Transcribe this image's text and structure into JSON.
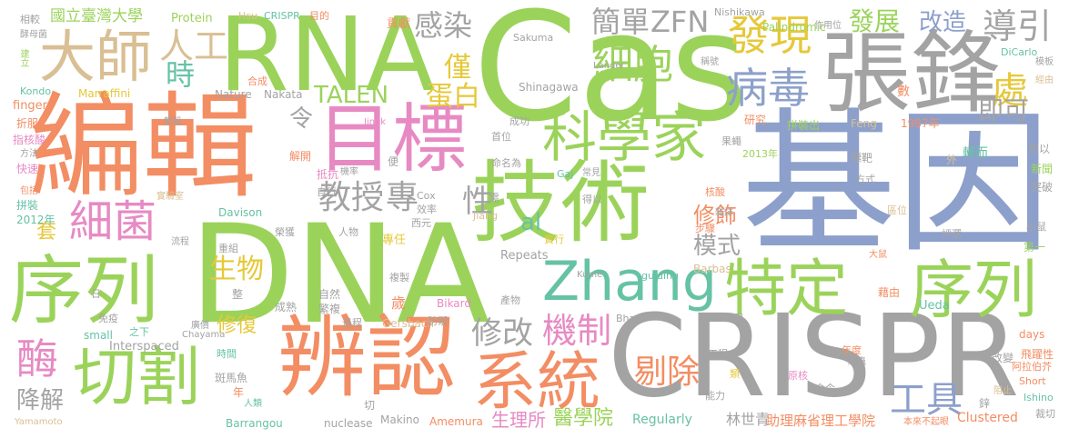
{
  "palette": {
    "green": "#9bd35a",
    "orange": "#f38d63",
    "blue": "#8da0cb",
    "gray": "#a3a3a3",
    "pink": "#e78ac3",
    "tan": "#d9bf93",
    "teal": "#66c2a5",
    "yellow": "#e6c838"
  },
  "words": [
    {
      "text": "Cas",
      "color": "green"
    },
    {
      "text": "基因",
      "color": "blue"
    },
    {
      "text": "DNA",
      "color": "green"
    },
    {
      "text": "編輯",
      "color": "orange"
    },
    {
      "text": "CRISPR",
      "color": "gray"
    },
    {
      "text": "RNA",
      "color": "green"
    },
    {
      "text": "張鋒",
      "color": "gray"
    },
    {
      "text": "技術",
      "color": "green"
    },
    {
      "text": "辨認",
      "color": "orange"
    },
    {
      "text": "目標",
      "color": "pink"
    },
    {
      "text": "序列",
      "color": "green"
    },
    {
      "text": "序列",
      "color": "green"
    },
    {
      "text": "特定",
      "color": "green"
    },
    {
      "text": "Zhang",
      "color": "teal"
    },
    {
      "text": "切割",
      "color": "green"
    },
    {
      "text": "系統",
      "color": "orange"
    },
    {
      "text": "科學家",
      "color": "green"
    },
    {
      "text": "大師",
      "color": "tan"
    },
    {
      "text": "細菌",
      "color": "pink"
    },
    {
      "text": "細胞",
      "color": "green"
    },
    {
      "text": "病毒",
      "color": "blue"
    },
    {
      "text": "發現",
      "color": "yellow"
    },
    {
      "text": "酶",
      "color": "pink"
    },
    {
      "text": "教授",
      "color": "gray"
    },
    {
      "text": "專",
      "color": "gray"
    },
    {
      "text": "機制",
      "color": "pink"
    },
    {
      "text": "修改",
      "color": "gray"
    },
    {
      "text": "剔除",
      "color": "orange"
    },
    {
      "text": "工具",
      "color": "blue"
    },
    {
      "text": "發展",
      "color": "green"
    },
    {
      "text": "改造",
      "color": "blue"
    },
    {
      "text": "導引",
      "color": "gray"
    },
    {
      "text": "簡單",
      "color": "gray"
    },
    {
      "text": "ZFN",
      "color": "gray"
    },
    {
      "text": "感染",
      "color": "gray"
    },
    {
      "text": "TALEN",
      "color": "green"
    },
    {
      "text": "蛋白",
      "color": "yellow"
    },
    {
      "text": "人工",
      "color": "tan"
    },
    {
      "text": "時",
      "color": "teal"
    },
    {
      "text": "處",
      "color": "yellow"
    },
    {
      "text": "即可",
      "color": "gray"
    },
    {
      "text": "修飾",
      "color": "orange"
    },
    {
      "text": "模式",
      "color": "gray"
    },
    {
      "text": "生物",
      "color": "yellow"
    },
    {
      "text": "修復",
      "color": "yellow"
    },
    {
      "text": "降解",
      "color": "gray"
    },
    {
      "text": "性",
      "color": "gray"
    },
    {
      "text": "僅",
      "color": "yellow"
    },
    {
      "text": "al",
      "color": "teal"
    },
    {
      "text": "令",
      "color": "gray"
    },
    {
      "text": "套",
      "color": "yellow"
    },
    {
      "text": "醫學院",
      "color": "green"
    },
    {
      "text": "生理所",
      "color": "pink"
    },
    {
      "text": "林世青",
      "color": "gray"
    },
    {
      "text": "助理麻省理工學院",
      "color": "orange"
    },
    {
      "text": "Clustered",
      "color": "orange"
    },
    {
      "text": "Regularly",
      "color": "teal"
    },
    {
      "text": "國立臺灣大學",
      "color": "green"
    },
    {
      "text": "Protein",
      "color": "green"
    },
    {
      "text": "Hsu",
      "color": "tan"
    },
    {
      "text": "CRISPR",
      "color": "teal"
    },
    {
      "text": "目的",
      "color": "orange"
    },
    {
      "text": "貢獻",
      "color": "orange"
    },
    {
      "text": "Nishikawa",
      "color": "gray"
    },
    {
      "text": "Palindromic",
      "color": "green"
    },
    {
      "text": "作用位",
      "color": "gray"
    },
    {
      "text": "相較",
      "color": "gray"
    },
    {
      "text": "酵母菌",
      "color": "gray"
    },
    {
      "text": "建立",
      "color": "green"
    },
    {
      "text": "Kondo",
      "color": "teal"
    },
    {
      "text": "finger",
      "color": "orange"
    },
    {
      "text": "折服",
      "color": "orange"
    },
    {
      "text": "指核酸",
      "color": "pink"
    },
    {
      "text": "方法",
      "color": "gray"
    },
    {
      "text": "快速",
      "color": "pink"
    },
    {
      "text": "包括",
      "color": "orange"
    },
    {
      "text": "拼裝",
      "color": "teal"
    },
    {
      "text": "2012年",
      "color": "teal"
    },
    {
      "text": "Marraffini",
      "color": "yellow"
    },
    {
      "text": "Nature",
      "color": "gray"
    },
    {
      "text": "Nakata",
      "color": "gray"
    },
    {
      "text": "Jinek",
      "color": "pink"
    },
    {
      "text": "Sakuma",
      "color": "gray"
    },
    {
      "text": "Shinagawa",
      "color": "gray"
    },
    {
      "text": "Lander",
      "color": "gray"
    },
    {
      "text": "稱號",
      "color": "gray"
    },
    {
      "text": "DiCarlo",
      "color": "teal"
    },
    {
      "text": "模板",
      "color": "gray"
    },
    {
      "text": "經由",
      "color": "tan"
    },
    {
      "text": "Feng",
      "color": "tan"
    },
    {
      "text": "1987年",
      "color": "orange"
    },
    {
      "text": "研究",
      "color": "orange"
    },
    {
      "text": "拼裝出",
      "color": "green"
    },
    {
      "text": "成功",
      "color": "gray"
    },
    {
      "text": "首位",
      "color": "gray"
    },
    {
      "text": "命名為",
      "color": "gray"
    },
    {
      "text": "Gaj",
      "color": "teal"
    },
    {
      "text": "常見",
      "color": "gray"
    },
    {
      "text": "核酸",
      "color": "orange"
    },
    {
      "text": "2013年",
      "color": "green"
    },
    {
      "text": "轉而",
      "color": "teal"
    },
    {
      "text": "標靶",
      "color": "gray"
    },
    {
      "text": "方式",
      "color": "gray"
    },
    {
      "text": "用以",
      "color": "gray"
    },
    {
      "text": "新聞",
      "color": "green"
    },
    {
      "text": "突破",
      "color": "gray"
    },
    {
      "text": "Cox",
      "color": "gray"
    },
    {
      "text": "Davison",
      "color": "teal"
    },
    {
      "text": "Jiang",
      "color": "tan"
    },
    {
      "text": "西元",
      "color": "gray"
    },
    {
      "text": "人物",
      "color": "gray"
    },
    {
      "text": "雜誌",
      "color": "gray"
    },
    {
      "text": "步驟",
      "color": "orange"
    },
    {
      "text": "區位",
      "color": "tan"
    },
    {
      "text": "評選",
      "color": "gray"
    },
    {
      "text": "第一",
      "color": "green"
    },
    {
      "text": "小鼠",
      "color": "gray"
    },
    {
      "text": "重組",
      "color": "gray"
    },
    {
      "text": "榮獲",
      "color": "gray"
    },
    {
      "text": "專任",
      "color": "yellow"
    },
    {
      "text": "實行",
      "color": "yellow"
    },
    {
      "text": "Repeats",
      "color": "gray"
    },
    {
      "text": "Barbas",
      "color": "tan"
    },
    {
      "text": "Kume",
      "color": "gray"
    },
    {
      "text": "guiding",
      "color": "teal"
    },
    {
      "text": "大鼠",
      "color": "orange"
    },
    {
      "text": "藉由",
      "color": "orange"
    },
    {
      "text": "Ueda",
      "color": "teal"
    },
    {
      "text": "days",
      "color": "orange"
    },
    {
      "text": "自然",
      "color": "gray"
    },
    {
      "text": "繁複",
      "color": "gray"
    },
    {
      "text": "成熟",
      "color": "gray"
    },
    {
      "text": "複製",
      "color": "gray"
    },
    {
      "text": "歲",
      "color": "orange"
    },
    {
      "text": "Bikard",
      "color": "pink"
    },
    {
      "text": "產物",
      "color": "gray"
    },
    {
      "text": "過程",
      "color": "gray"
    },
    {
      "text": "Gersbach",
      "color": "tan"
    },
    {
      "text": "防禦",
      "color": "gray"
    },
    {
      "text": "Bhaya",
      "color": "gray"
    },
    {
      "text": "免疫",
      "color": "gray"
    },
    {
      "text": "small",
      "color": "teal"
    },
    {
      "text": "Interspaced",
      "color": "gray"
    },
    {
      "text": "Chayama",
      "color": "gray"
    },
    {
      "text": "廣價",
      "color": "gray"
    },
    {
      "text": "時間",
      "color": "teal"
    },
    {
      "text": "斑馬魚",
      "color": "gray"
    },
    {
      "text": "人類",
      "color": "teal"
    },
    {
      "text": "Yamamoto",
      "color": "tan"
    },
    {
      "text": "Barrangou",
      "color": "teal"
    },
    {
      "text": "nuclease",
      "color": "gray"
    },
    {
      "text": "Makino",
      "color": "gray"
    },
    {
      "text": "Amemura",
      "color": "orange"
    },
    {
      "text": "工程",
      "color": "gray"
    },
    {
      "text": "年度",
      "color": "orange"
    },
    {
      "text": "命令",
      "color": "gray"
    },
    {
      "text": "能力",
      "color": "gray"
    },
    {
      "text": "改變",
      "color": "gray"
    },
    {
      "text": "飛躍性",
      "color": "orange"
    },
    {
      "text": "阿拉伯芥",
      "color": "orange"
    },
    {
      "text": "Short",
      "color": "orange"
    },
    {
      "text": "阻止",
      "color": "tan"
    },
    {
      "text": "Ishino",
      "color": "teal"
    },
    {
      "text": "裁切",
      "color": "gray"
    },
    {
      "text": "本來不起眼",
      "color": "orange"
    },
    {
      "text": "線蟲",
      "color": "gray"
    },
    {
      "text": "原核",
      "color": "pink"
    },
    {
      "text": "解開",
      "color": "orange"
    },
    {
      "text": "抵抗",
      "color": "pink"
    },
    {
      "text": "自行",
      "color": "gray"
    },
    {
      "text": "效率",
      "color": "gray"
    },
    {
      "text": "實驗室",
      "color": "tan"
    },
    {
      "text": "之下",
      "color": "teal"
    },
    {
      "text": "作用",
      "color": "gray"
    },
    {
      "text": "合成",
      "color": "orange"
    },
    {
      "text": "雙股",
      "color": "gray"
    },
    {
      "text": "機率",
      "color": "gray"
    },
    {
      "text": "果蠅",
      "color": "gray"
    },
    {
      "text": "流程",
      "color": "gray"
    },
    {
      "text": "得以",
      "color": "gray"
    },
    {
      "text": "外",
      "color": "tan"
    },
    {
      "text": "鋅",
      "color": "gray"
    },
    {
      "text": "類",
      "color": "yellow"
    },
    {
      "text": "數",
      "color": "orange"
    },
    {
      "text": "需",
      "color": "gray"
    },
    {
      "text": "便",
      "color": "gray"
    },
    {
      "text": "整",
      "color": "gray"
    },
    {
      "text": "年",
      "color": "orange"
    },
    {
      "text": "切",
      "color": "gray"
    },
    {
      "text": "日",
      "color": "gray"
    }
  ]
}
